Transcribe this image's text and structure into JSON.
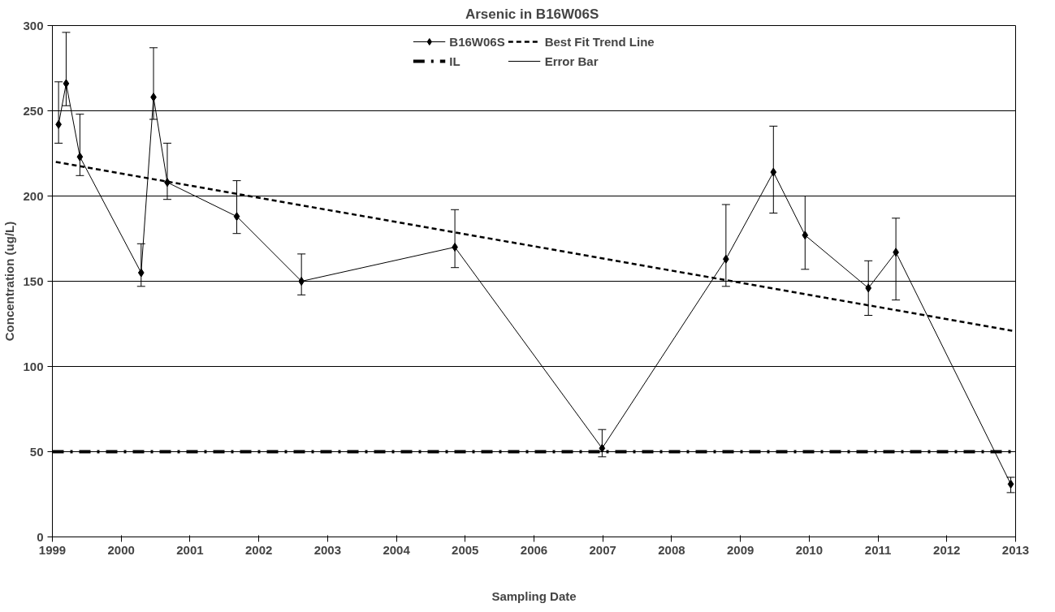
{
  "chart_data": {
    "type": "line",
    "title": "Arsenic in  B16W06S",
    "xlabel": "Sampling Date",
    "ylabel": "Concentration (ug/L)",
    "xlim": [
      1999,
      2013
    ],
    "xticks": [
      1999,
      2000,
      2001,
      2002,
      2003,
      2004,
      2005,
      2006,
      2007,
      2008,
      2009,
      2010,
      2011,
      2012,
      2013
    ],
    "ylim": [
      0,
      300
    ],
    "yticks": [
      0,
      50,
      100,
      150,
      200,
      250,
      300
    ],
    "grid": "y",
    "legend": "top",
    "marker": "diamond",
    "series": [
      {
        "name": "B16W06S",
        "color": "#000000",
        "x": [
          1999.09,
          1999.2,
          1999.4,
          2000.29,
          2000.47,
          2000.67,
          2001.68,
          2002.62,
          2004.85,
          2006.99,
          2008.79,
          2009.48,
          2009.94,
          2010.86,
          2011.26,
          2012.93
        ],
        "values": [
          242,
          266,
          223,
          155,
          258,
          208,
          188,
          150,
          170,
          52,
          163,
          214,
          177,
          146,
          167,
          31
        ],
        "errors": [
          [
            231,
            267
          ],
          [
            253,
            296
          ],
          [
            212,
            248
          ],
          [
            147,
            172
          ],
          [
            245,
            287
          ],
          [
            198,
            231
          ],
          [
            178,
            209
          ],
          [
            142,
            166
          ],
          [
            158,
            192
          ],
          [
            47,
            63
          ],
          [
            147,
            195
          ],
          [
            190,
            241
          ],
          [
            157,
            200
          ],
          [
            130,
            162
          ],
          [
            139,
            187
          ],
          [
            26,
            35
          ]
        ]
      },
      {
        "name": "Best Fit Trend Line",
        "color": "#000000",
        "line_style": "dashed",
        "marker": "none",
        "x": [
          1999.05,
          2012.95
        ],
        "values": [
          220,
          121
        ]
      }
    ],
    "ref_lines": [
      {
        "axis": "y",
        "value": 50,
        "label": "IL",
        "color": "#000000",
        "line_style": "dashdot"
      }
    ],
    "annotations": [
      "Error Bar"
    ]
  }
}
